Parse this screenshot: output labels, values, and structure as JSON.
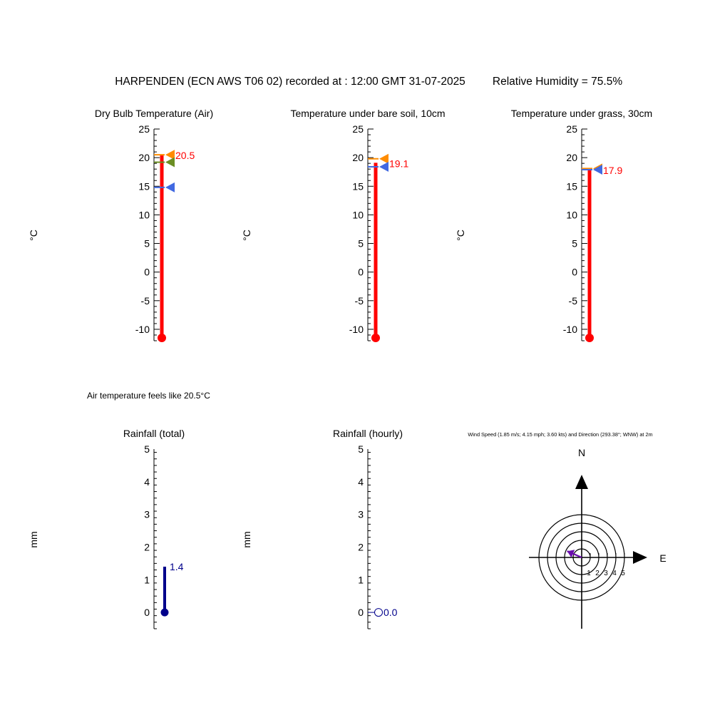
{
  "title": "HARPENDEN (ECN AWS T06 02) recorded at : 12:00 GMT  31-07-2025",
  "humidity_text": "Relative Humidity = 75.5%",
  "feels_like_text": "Air temperature feels like 20.5°C",
  "colors": {
    "mercury": "#ff0000",
    "max_marker": "#ff8c00",
    "min_marker": "#4169e1",
    "mean_marker": "#6b8e23",
    "rain": "#00008b",
    "wind_arrow": "#6a0dad"
  },
  "chart_data": [
    {
      "type": "thermometer",
      "title": "Dry Bulb Temperature (Air)",
      "ylabel": "°C",
      "ylim": [
        -12,
        25
      ],
      "ticks": [
        "-10",
        "-5",
        "0",
        "5",
        "10",
        "15",
        "20",
        "25"
      ],
      "value": 20.5,
      "value_label": "20.5",
      "markers": [
        {
          "kind": "max",
          "value": 20.5
        },
        {
          "kind": "mean",
          "value": 19.2
        },
        {
          "kind": "min",
          "value": 14.8
        }
      ]
    },
    {
      "type": "thermometer",
      "title": "Temperature under bare soil, 10cm",
      "ylabel": "°C",
      "ylim": [
        -12,
        25
      ],
      "ticks": [
        "-10",
        "-5",
        "0",
        "5",
        "10",
        "15",
        "20",
        "25"
      ],
      "value": 19.1,
      "value_label": "19.1",
      "markers": [
        {
          "kind": "max",
          "value": 19.8
        },
        {
          "kind": "min",
          "value": 18.4
        }
      ]
    },
    {
      "type": "thermometer",
      "title": "Temperature under grass, 30cm",
      "ylabel": "°C",
      "ylim": [
        -12,
        25
      ],
      "ticks": [
        "-10",
        "-5",
        "0",
        "5",
        "10",
        "15",
        "20",
        "25"
      ],
      "value": 17.9,
      "value_label": "17.9",
      "markers": [
        {
          "kind": "max",
          "value": 18.1
        },
        {
          "kind": "min",
          "value": 17.9
        }
      ]
    },
    {
      "type": "gauge",
      "title": "Rainfall (total)",
      "ylabel": "mm",
      "ylim": [
        -0.5,
        5
      ],
      "ticks": [
        "0",
        "1",
        "2",
        "3",
        "4",
        "5"
      ],
      "value": 1.4,
      "value_label": "1.4"
    },
    {
      "type": "gauge",
      "title": "Rainfall (hourly)",
      "ylabel": "mm",
      "ylim": [
        -0.5,
        5
      ],
      "ticks": [
        "0",
        "1",
        "2",
        "3",
        "4",
        "5"
      ],
      "value": 0.0,
      "value_label": "0.0"
    },
    {
      "type": "wind_rose",
      "title": "Wind Speed (1.85 m/s; 4.15 mph; 3.60 kts) and Direction (293.38°; WNW) at 2m",
      "north_label": "N",
      "east_label": "E",
      "ring_labels": [
        "1",
        "2",
        "3",
        "4",
        "5"
      ],
      "speed_ms": 1.85,
      "direction_deg": 293.38
    }
  ]
}
